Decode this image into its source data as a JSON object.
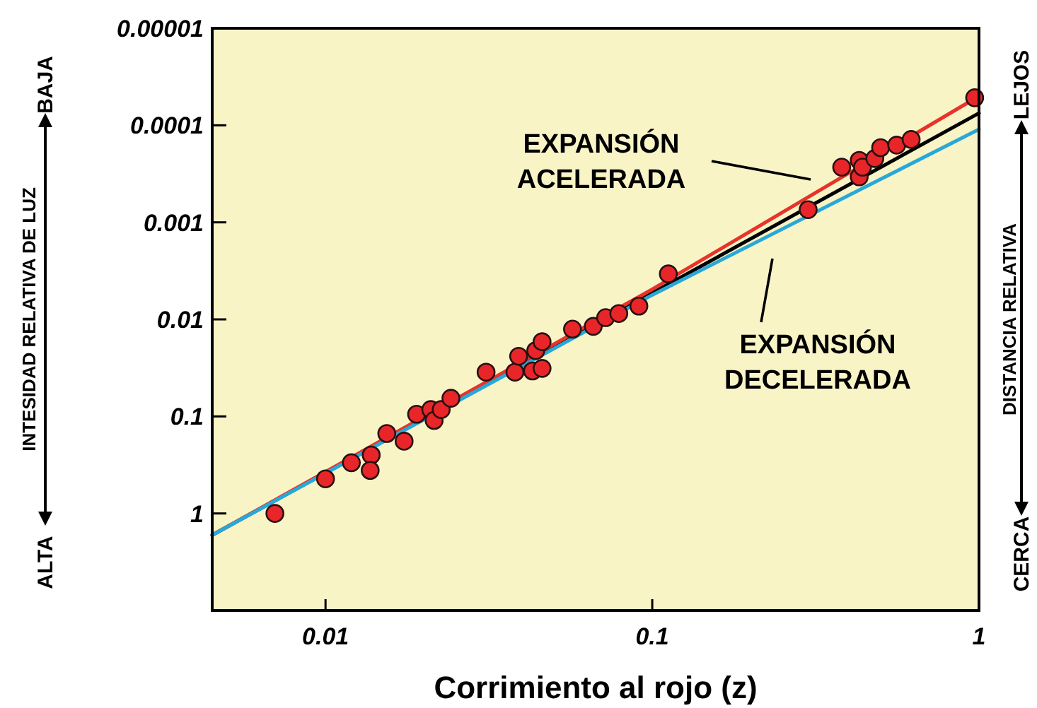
{
  "chart_data": {
    "type": "scatter",
    "xlabel": "Corrimiento al rojo (z)",
    "ylabel": "INTESIDAD RELATIVA DE LUZ",
    "y2label": "DISTANCIA RELATIVA",
    "log": "xy",
    "xlim": [
      0.0045,
      1
    ],
    "xticks": [
      0.01,
      0.1,
      1
    ],
    "ylim": [
      10,
      1e-05
    ],
    "yticks": [
      {
        "value": 1e-05,
        "label": "0.00001"
      },
      0.0001,
      0.001,
      0.01,
      0.1,
      1
    ],
    "grid": false,
    "series": [
      {
        "type": "line",
        "color": "#000000",
        "x": [
          0.0045,
          1
        ],
        "values": [
          1.67,
          7.5e-05
        ]
      },
      {
        "type": "line",
        "color": "#e8332a",
        "x": [
          0.0045,
          0.1,
          1
        ],
        "values": [
          1.67,
          0.0049,
          5e-05
        ]
      },
      {
        "type": "line",
        "color": "#29a8d8",
        "x": [
          0.0045,
          0.1,
          1
        ],
        "values": [
          1.67,
          0.0056,
          0.00011
        ]
      },
      {
        "marker": "circle",
        "color": "#e8262a",
        "x": [
          0.007,
          0.01,
          0.012,
          0.0138,
          0.0137,
          0.0154,
          0.0174,
          0.019,
          0.021,
          0.0215,
          0.0226,
          0.0242,
          0.031,
          0.038,
          0.039,
          0.043,
          0.044,
          0.046,
          0.046,
          0.057,
          0.066,
          0.072,
          0.079,
          0.091,
          0.112,
          0.3,
          0.38,
          0.43,
          0.43,
          0.44,
          0.48,
          0.5,
          0.56,
          0.62,
          0.97
        ],
        "values": [
          1.0,
          0.44,
          0.3,
          0.25,
          0.36,
          0.15,
          0.18,
          0.095,
          0.085,
          0.11,
          0.085,
          0.065,
          0.035,
          0.035,
          0.024,
          0.034,
          0.021,
          0.017,
          0.032,
          0.0126,
          0.0118,
          0.0096,
          0.0087,
          0.0073,
          0.0034,
          0.00074,
          0.00027,
          0.00023,
          0.00034,
          0.00027,
          0.00022,
          0.00017,
          0.00016,
          0.00014,
          5.2e-05
        ]
      }
    ],
    "annotations": [
      "EXPANSIÓN ACELERADA",
      "EXPANSIÓN DECELERADA",
      "BAJA",
      "ALTA",
      "LEJOS",
      "CERCA"
    ]
  }
}
